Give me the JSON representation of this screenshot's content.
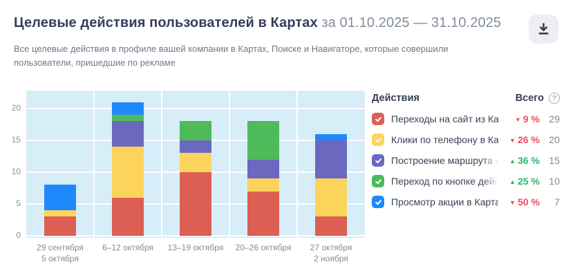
{
  "header": {
    "title": "Целевые действия пользователей в Картах",
    "period": "за 01.10.2025 — 31.10.2025",
    "subtitle_lines": [
      "Все целевые действия в профиле вашей компании в Картах, Поиске и Навигаторе, которые совершили",
      "пользователи, пришедшие по рекламе"
    ]
  },
  "icons": {
    "download": "download-icon",
    "help": "?",
    "check": "check-icon",
    "trend_up": "▲",
    "trend_down": "▼"
  },
  "colors": {
    "title": "#353d5c",
    "muted_text": "#6e7888",
    "plot_bg": "#d7edf8",
    "grid": "#ffffff",
    "trend_down": "#ef4b60",
    "trend_up": "#2fb36b",
    "download_btn_bg": "#eceef3",
    "icon": "#343b57"
  },
  "legend": {
    "actions_header": "Действия",
    "total_header": "Всего",
    "rows": [
      {
        "label": "Переходы на сайт из Карт",
        "color": "#dd5f54",
        "trend": "down",
        "percent": "9 %",
        "total": "29",
        "truncated": false
      },
      {
        "label": "Клики по телефону в Картах",
        "color": "#fdd45b",
        "trend": "down",
        "percent": "26 %",
        "total": "20",
        "truncated": false
      },
      {
        "label": "Построение маршрута в Картах",
        "color": "#6b69bf",
        "trend": "up",
        "percent": "36 %",
        "total": "15",
        "truncated": true
      },
      {
        "label": "Переход по кнопке действия из",
        "color": "#4fba59",
        "trend": "up",
        "percent": "25 %",
        "total": "10",
        "truncated": true
      },
      {
        "label": "Просмотр акции в Картах",
        "color": "#1f88fb",
        "trend": "down",
        "percent": "50 %",
        "total": "7",
        "truncated": false
      }
    ]
  },
  "chart_data": {
    "type": "bar",
    "stacked": true,
    "categories": [
      [
        "29 сентября",
        "5 октября"
      ],
      [
        "6–12 октября"
      ],
      [
        "13–19 октября"
      ],
      [
        "20–26 октября"
      ],
      [
        "27 октября",
        "2 ноября"
      ]
    ],
    "series": [
      {
        "name": "Переходы на сайт из Карт",
        "color": "#dd5f54",
        "values": [
          3,
          6,
          10,
          7,
          3
        ]
      },
      {
        "name": "Клики по телефону в Картах",
        "color": "#fdd45b",
        "values": [
          1,
          8,
          3,
          2,
          6
        ]
      },
      {
        "name": "Построение маршрута в Картах",
        "color": "#6b69bf",
        "values": [
          0,
          4,
          2,
          3,
          6
        ]
      },
      {
        "name": "Переход по кнопке действия из",
        "color": "#4fba59",
        "values": [
          0,
          1,
          3,
          6,
          0
        ]
      },
      {
        "name": "Просмотр акции в Картах",
        "color": "#1f88fb",
        "values": [
          4,
          2,
          0,
          0,
          1
        ]
      }
    ],
    "totals_per_category": [
      8,
      21,
      18,
      18,
      16
    ],
    "yticks": [
      0,
      5,
      10,
      15,
      20
    ],
    "ylim": [
      0,
      22.8
    ],
    "grid": true,
    "legend_position": "right"
  }
}
